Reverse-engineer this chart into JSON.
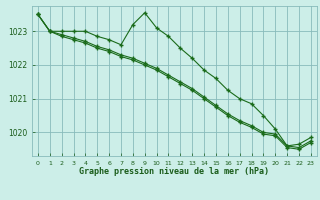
{
  "title": "Graphe pression niveau de la mer (hPa)",
  "bg_color": "#cceee8",
  "plot_bg_color": "#cceee8",
  "grid_color": "#88bbbb",
  "line_color": "#1a6b1a",
  "xlabel_color": "#1a5c1a",
  "hours": [
    0,
    1,
    2,
    3,
    4,
    5,
    6,
    7,
    8,
    9,
    10,
    11,
    12,
    13,
    14,
    15,
    16,
    17,
    18,
    19,
    20,
    21,
    22,
    23
  ],
  "series_main": [
    1023.5,
    1023.0,
    1023.0,
    1023.0,
    1023.0,
    1022.85,
    1022.75,
    1022.6,
    1023.2,
    1023.55,
    1023.1,
    1022.85,
    1022.5,
    1022.2,
    1021.85,
    1021.6,
    1021.25,
    1021.0,
    1020.85,
    1020.5,
    1020.1,
    1019.6,
    1019.65,
    1019.85
  ],
  "series_line1": [
    1023.5,
    1023.0,
    1022.9,
    1022.8,
    1022.7,
    1022.55,
    1022.45,
    1022.3,
    1022.2,
    1022.05,
    1021.9,
    1021.7,
    1021.5,
    1021.3,
    1021.05,
    1020.8,
    1020.55,
    1020.35,
    1020.2,
    1020.0,
    1019.95,
    1019.6,
    1019.55,
    1019.75
  ],
  "series_line2": [
    1023.5,
    1023.0,
    1022.85,
    1022.75,
    1022.65,
    1022.5,
    1022.4,
    1022.25,
    1022.15,
    1022.0,
    1021.85,
    1021.65,
    1021.45,
    1021.25,
    1021.0,
    1020.75,
    1020.5,
    1020.3,
    1020.15,
    1019.95,
    1019.9,
    1019.55,
    1019.5,
    1019.7
  ],
  "ylim": [
    1019.3,
    1023.75
  ],
  "yticks": [
    1020,
    1021,
    1022,
    1023
  ],
  "xlim": [
    -0.5,
    23.5
  ],
  "xticks": [
    0,
    1,
    2,
    3,
    4,
    5,
    6,
    7,
    8,
    9,
    10,
    11,
    12,
    13,
    14,
    15,
    16,
    17,
    18,
    19,
    20,
    21,
    22,
    23
  ],
  "figsize": [
    3.2,
    2.0
  ],
  "dpi": 100
}
